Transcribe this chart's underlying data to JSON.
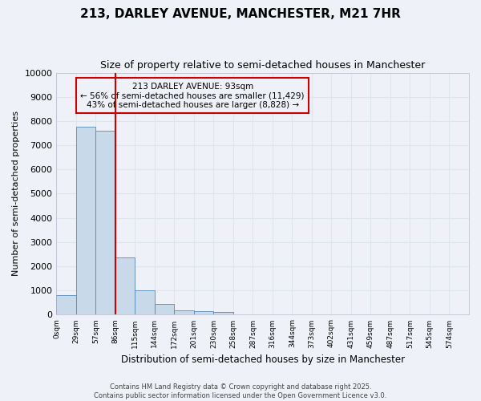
{
  "title1": "213, DARLEY AVENUE, MANCHESTER, M21 7HR",
  "title2": "Size of property relative to semi-detached houses in Manchester",
  "xlabel": "Distribution of semi-detached houses by size in Manchester",
  "ylabel": "Number of semi-detached properties",
  "bin_labels": [
    "0sqm",
    "29sqm",
    "57sqm",
    "86sqm",
    "115sqm",
    "144sqm",
    "172sqm",
    "201sqm",
    "230sqm",
    "258sqm",
    "287sqm",
    "316sqm",
    "344sqm",
    "373sqm",
    "402sqm",
    "431sqm",
    "459sqm",
    "487sqm",
    "517sqm",
    "545sqm",
    "574sqm"
  ],
  "bar_values": [
    800,
    7750,
    7600,
    2350,
    1000,
    450,
    175,
    150,
    100,
    0,
    0,
    0,
    0,
    0,
    0,
    0,
    0,
    0,
    0,
    0,
    0
  ],
  "bar_color": "#c8daea",
  "bar_edge_color": "#5588bb",
  "property_bin_index": 3,
  "vline_color": "#cc0000",
  "annotation_title": "213 DARLEY AVENUE: 93sqm",
  "annotation_line1": "← 56% of semi-detached houses are smaller (11,429)",
  "annotation_line2": "43% of semi-detached houses are larger (8,828) →",
  "annotation_box_edgecolor": "#cc0000",
  "footer1": "Contains HM Land Registry data © Crown copyright and database right 2025.",
  "footer2": "Contains public sector information licensed under the Open Government Licence v3.0.",
  "ylim": [
    0,
    10000
  ],
  "yticks": [
    0,
    1000,
    2000,
    3000,
    4000,
    5000,
    6000,
    7000,
    8000,
    9000,
    10000
  ],
  "background_color": "#eef2f8",
  "grid_color": "#dde5ef"
}
